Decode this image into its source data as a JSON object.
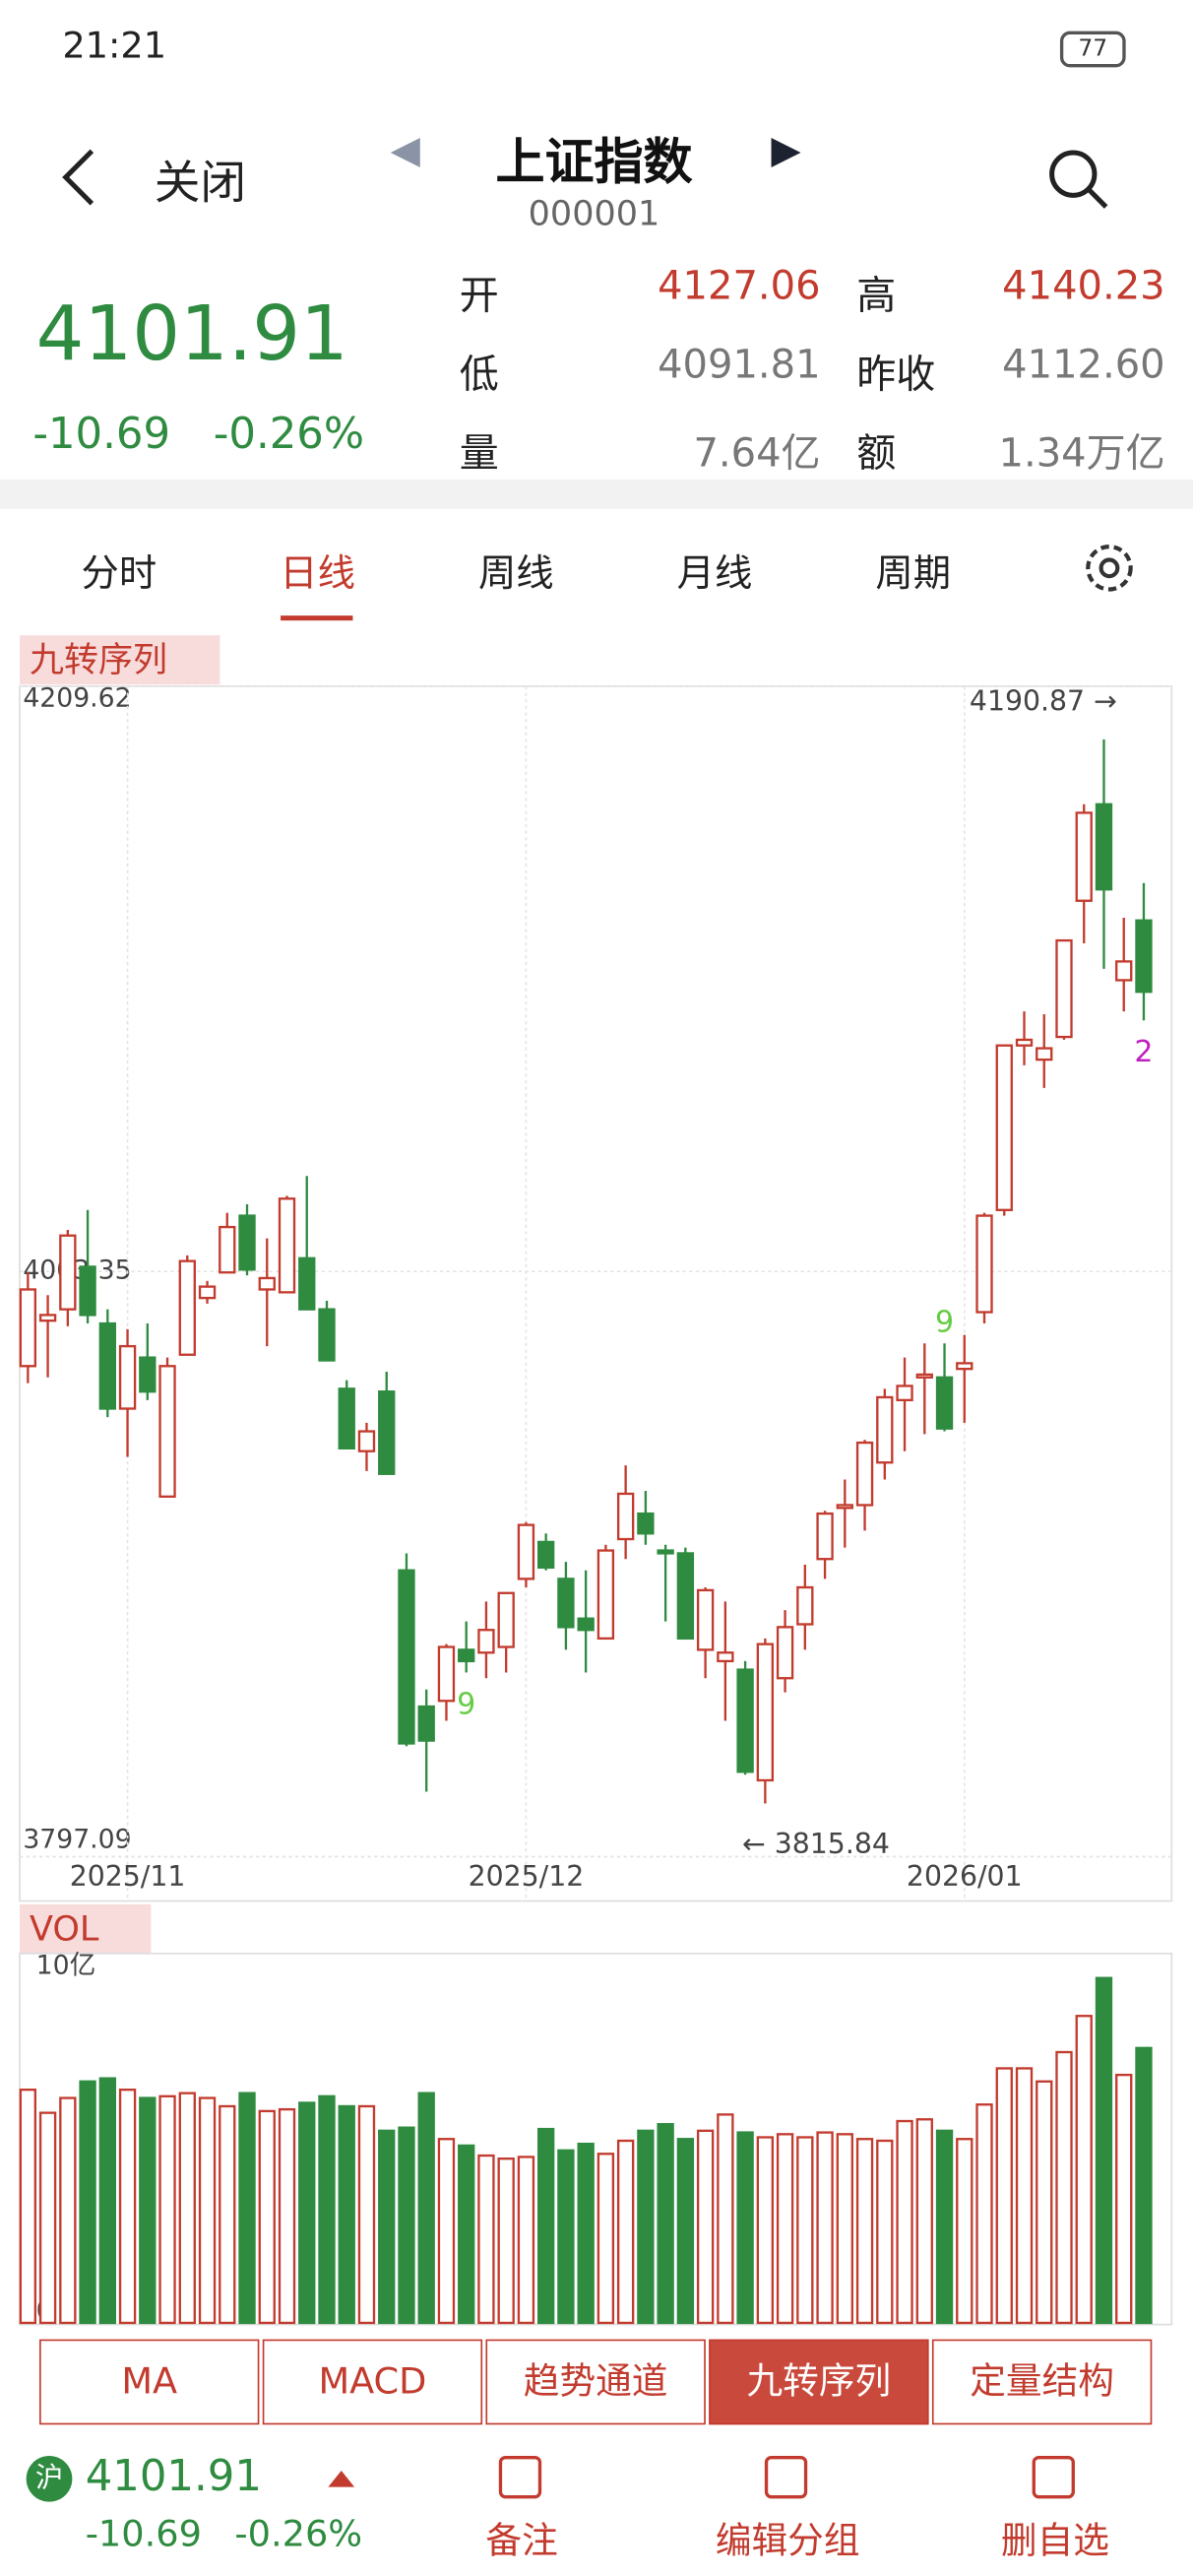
{
  "status_bar": {
    "time": "21:21",
    "battery": "77"
  },
  "nav": {
    "back": "关闭",
    "title": "上证指数",
    "code": "000001"
  },
  "quote": {
    "price": "4101.91",
    "change": "-10.69",
    "pct": "-0.26%",
    "left_fields": [
      [
        "开",
        "4127.06"
      ],
      [
        "低",
        "4091.81"
      ],
      [
        "量",
        "7.64亿"
      ]
    ],
    "right_fields": [
      [
        "高",
        "4140.23"
      ],
      [
        "昨收",
        "4112.60"
      ],
      [
        "额",
        "1.34万亿"
      ]
    ]
  },
  "tabs": {
    "items": [
      "分时",
      "日线",
      "周线",
      "月线",
      "周期"
    ]
  },
  "indicator_label": "九转序列",
  "vol_label": "VOL",
  "buttons": {
    "items": [
      "MA",
      "MACD",
      "趋势通道",
      "九转序列",
      "定量结构"
    ]
  },
  "bottom": {
    "exchange": "沪",
    "price": "4101.91",
    "change": "-10.69",
    "pct": "-0.26%",
    "actions": [
      "备注",
      "编辑分组",
      "删自选"
    ]
  },
  "chart_data": [
    {
      "type": "candlestick",
      "up_color": "#c23b2e",
      "down_color": "#2e8b40",
      "categories": [
        null,
        null,
        null,
        null,
        null,
        "2025/11",
        null,
        null,
        null,
        null,
        null,
        null,
        null,
        null,
        null,
        null,
        null,
        null,
        null,
        null,
        null,
        null,
        null,
        null,
        null,
        "2025/12",
        null,
        null,
        null,
        null,
        null,
        null,
        null,
        null,
        null,
        null,
        null,
        null,
        null,
        null,
        null,
        null,
        null,
        null,
        null,
        null,
        null,
        "2026/01",
        null,
        null,
        null,
        null,
        null,
        null,
        null,
        null,
        null
      ],
      "open": [
        3970,
        3986,
        3990,
        4005,
        3985,
        3955,
        3973,
        3924,
        3974,
        3994,
        4003,
        4023,
        3997,
        3996,
        4008,
        3990,
        3962,
        3940,
        3961,
        3898,
        3850,
        3852,
        3870,
        3869,
        3871,
        3895,
        3908,
        3895,
        3881,
        3874,
        3909,
        3918,
        3905,
        3904,
        3870,
        3866,
        3863,
        3824,
        3860,
        3879,
        3902,
        3920,
        3921,
        3936,
        3958,
        3966,
        3966,
        3969,
        3989,
        4025,
        4083,
        4078,
        4086,
        4134,
        4168,
        4106,
        4127.06
      ],
      "high": [
        4003,
        3995,
        4018,
        4025,
        3990,
        3983,
        3985,
        3973,
        4009,
        4000,
        4024,
        4027,
        4015,
        4030,
        4037,
        3993,
        3965,
        3950,
        3968,
        3904,
        3856,
        3872,
        3880,
        3887,
        3890,
        3915,
        3911,
        3901,
        3898,
        3907,
        3935,
        3926,
        3907,
        3906,
        3892,
        3887,
        3866,
        3874,
        3884,
        3900,
        3919,
        3930,
        3944,
        3962,
        3973,
        3978,
        3978,
        3981,
        4024,
        4083,
        4095,
        4094,
        4120,
        4168,
        4190.87,
        4128,
        4140.23
      ],
      "low": [
        3964,
        3966,
        3984,
        3985,
        3952,
        3938,
        3958,
        3924,
        3974,
        3992,
        4003,
        4002,
        3977,
        3996,
        3990,
        3972,
        3941,
        3933,
        3933,
        3836,
        3820,
        3845,
        3862,
        3860,
        3862,
        3892,
        3898,
        3870,
        3862,
        3874,
        3902,
        3907,
        3880,
        3874,
        3860,
        3845,
        3826,
        3815.84,
        3855,
        3870,
        3895,
        3906,
        3912,
        3930,
        3940,
        3946,
        3947,
        3950,
        3985,
        4023,
        4076,
        4068,
        4085,
        4119,
        4110,
        4095,
        4091.81
      ],
      "close": [
        3997,
        3988,
        4016,
        3988,
        3955,
        3977,
        3961,
        3970,
        4007,
        3998,
        4019,
        4004,
        4001,
        4029,
        3990,
        3972,
        3941,
        3947,
        3932,
        3837,
        3838,
        3871,
        3866,
        3877,
        3890,
        3914,
        3899,
        3878,
        3877,
        3905,
        3925,
        3911,
        3904,
        3874,
        3891,
        3869,
        3827,
        3872,
        3878,
        3892,
        3918,
        3921,
        3943,
        3959,
        3963,
        3967,
        3948,
        3971,
        4023,
        4083,
        4085,
        4082,
        4120,
        4165,
        4138,
        4112.6,
        4101.91
      ],
      "ylim": [
        3797.09,
        4209.62
      ],
      "yticks": [
        3797.09,
        4003.35,
        4209.62
      ],
      "high_label": {
        "value": 4190.87,
        "label": "4190.87 →"
      },
      "low_label": {
        "value": 3815.84,
        "label": "← 3815.84"
      },
      "td_labels": [
        {
          "index": 22,
          "label": "9"
        },
        {
          "index": 46,
          "label": "9"
        },
        {
          "index": 56,
          "label": "2"
        }
      ]
    },
    {
      "type": "bar",
      "values": [
        6.43,
        5.76,
        6.19,
        6.67,
        6.76,
        6.43,
        6.19,
        6.24,
        6.33,
        6.19,
        5.95,
        6.33,
        5.81,
        5.86,
        6.05,
        6.24,
        5.95,
        5.95,
        5.24,
        5.33,
        6.33,
        5.0,
        4.81,
        4.52,
        4.43,
        4.48,
        5.29,
        4.67,
        4.86,
        4.57,
        4.95,
        5.24,
        5.43,
        5.0,
        5.24,
        5.71,
        5.19,
        5.05,
        5.14,
        5.05,
        5.19,
        5.14,
        5.0,
        4.95,
        5.52,
        5.57,
        5.24,
        5.0,
        6.0,
        7.05,
        7.05,
        6.67,
        7.52,
        8.57,
        9.67,
        6.86,
        7.64
      ],
      "ylim": [
        0,
        10
      ],
      "yticks": [
        0,
        {
          "value": 10,
          "label": "10亿"
        }
      ]
    }
  ]
}
